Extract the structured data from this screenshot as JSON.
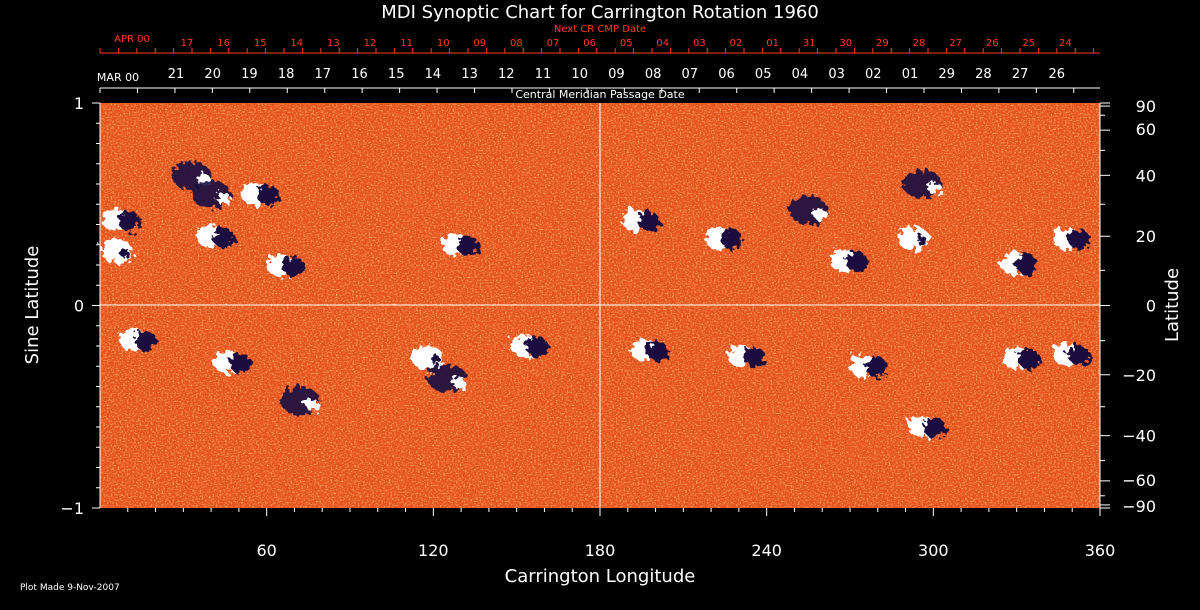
{
  "chart_data": {
    "type": "heatmap",
    "title": "MDI Synoptic Chart for Carrington Rotation 1960",
    "xlabel": "Carrington Longitude",
    "ylabel_left": "Sine Latitude",
    "ylabel_right": "Latitude",
    "xlim": [
      0,
      360
    ],
    "ylim": [
      -1,
      1
    ],
    "x_ticks": [
      60,
      120,
      180,
      240,
      300,
      360
    ],
    "y_ticks_left": [
      {
        "value": 1,
        "label": "1"
      },
      {
        "value": 0,
        "label": "0"
      },
      {
        "value": -1,
        "label": "−1"
      }
    ],
    "y_ticks_right": [
      90,
      60,
      40,
      20,
      0,
      -20,
      -40,
      -60,
      -90
    ],
    "y_ticks_right_labels": [
      "90",
      "60",
      "40",
      "20",
      "0",
      "−20",
      "−40",
      "−60",
      "−90"
    ],
    "colors": {
      "background": "#000000",
      "field_base": "#e8501a",
      "positive_polarity": "#ffffff",
      "negative_polarity": "#1a1040",
      "gridline": "#ffffff",
      "next_cr_axis": "#ff3b1f"
    },
    "active_regions": [
      {
        "lon": 6,
        "sinlat": 0.27,
        "polarity": "positive"
      },
      {
        "lon": 8,
        "sinlat": 0.42,
        "polarity": "mixed"
      },
      {
        "lon": 14,
        "sinlat": -0.17,
        "polarity": "mixed"
      },
      {
        "lon": 33,
        "sinlat": 0.64,
        "polarity": "negative"
      },
      {
        "lon": 40,
        "sinlat": 0.55,
        "polarity": "negative"
      },
      {
        "lon": 42,
        "sinlat": 0.34,
        "polarity": "mixed"
      },
      {
        "lon": 48,
        "sinlat": -0.28,
        "polarity": "mixed"
      },
      {
        "lon": 58,
        "sinlat": 0.55,
        "polarity": "mixed"
      },
      {
        "lon": 67,
        "sinlat": 0.2,
        "polarity": "mixed"
      },
      {
        "lon": 72,
        "sinlat": -0.47,
        "polarity": "negative"
      },
      {
        "lon": 118,
        "sinlat": -0.26,
        "polarity": "positive"
      },
      {
        "lon": 125,
        "sinlat": -0.36,
        "polarity": "negative"
      },
      {
        "lon": 130,
        "sinlat": 0.3,
        "polarity": "mixed"
      },
      {
        "lon": 155,
        "sinlat": -0.2,
        "polarity": "mixed"
      },
      {
        "lon": 195,
        "sinlat": 0.42,
        "polarity": "mixed"
      },
      {
        "lon": 198,
        "sinlat": -0.22,
        "polarity": "mixed"
      },
      {
        "lon": 225,
        "sinlat": 0.33,
        "polarity": "mixed"
      },
      {
        "lon": 233,
        "sinlat": -0.25,
        "polarity": "mixed"
      },
      {
        "lon": 255,
        "sinlat": 0.47,
        "polarity": "negative"
      },
      {
        "lon": 270,
        "sinlat": 0.22,
        "polarity": "mixed"
      },
      {
        "lon": 277,
        "sinlat": -0.3,
        "polarity": "mixed"
      },
      {
        "lon": 293,
        "sinlat": 0.33,
        "polarity": "positive"
      },
      {
        "lon": 296,
        "sinlat": 0.6,
        "polarity": "negative"
      },
      {
        "lon": 298,
        "sinlat": -0.6,
        "polarity": "mixed"
      },
      {
        "lon": 331,
        "sinlat": 0.21,
        "polarity": "mixed"
      },
      {
        "lon": 332,
        "sinlat": -0.26,
        "polarity": "mixed"
      },
      {
        "lon": 350,
        "sinlat": 0.33,
        "polarity": "mixed"
      },
      {
        "lon": 350,
        "sinlat": -0.24,
        "polarity": "mixed"
      }
    ],
    "cmp_axis": {
      "label": "Central Meridian Passage Date",
      "month_label": "MAR 00",
      "dates": [
        "21",
        "20",
        "19",
        "18",
        "17",
        "16",
        "15",
        "14",
        "13",
        "12",
        "11",
        "10",
        "09",
        "08",
        "07",
        "06",
        "05",
        "04",
        "03",
        "02",
        "01",
        "29",
        "28",
        "27",
        "26"
      ]
    },
    "next_cmp_axis": {
      "label": "Next CR CMP Date",
      "month_label": "APR 00",
      "dates": [
        "17",
        "16",
        "15",
        "14",
        "13",
        "12",
        "11",
        "10",
        "09",
        "08",
        "07",
        "06",
        "05",
        "04",
        "03",
        "02",
        "01",
        "31",
        "30",
        "29",
        "28",
        "27",
        "26",
        "25",
        "24"
      ]
    }
  },
  "footer": {
    "plot_made": "Plot Made  9-Nov-2007"
  }
}
